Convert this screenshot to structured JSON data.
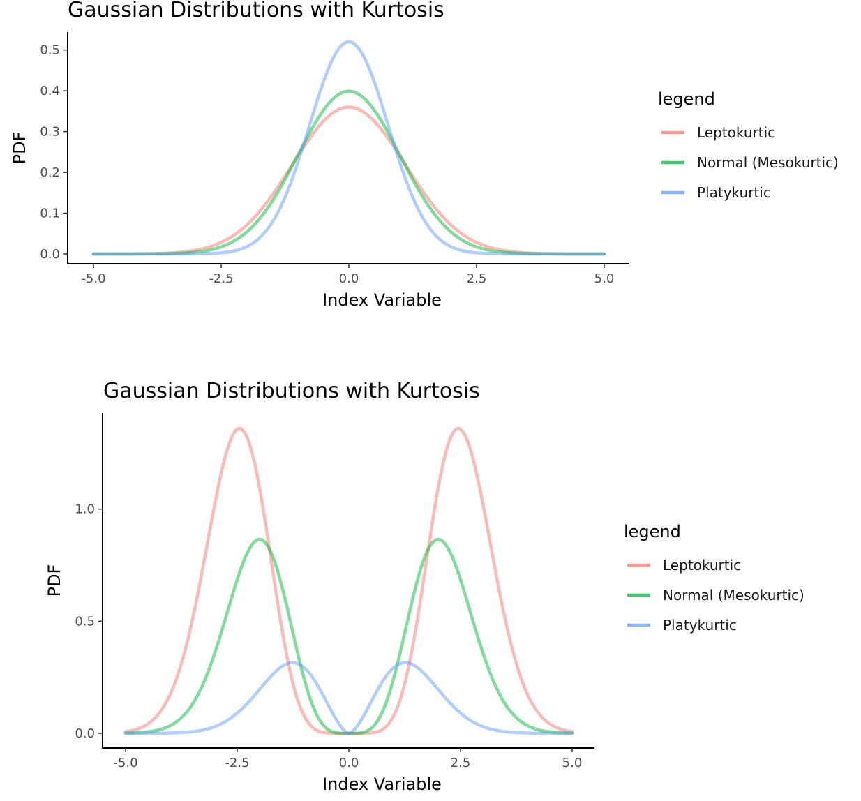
{
  "chart_data": [
    {
      "type": "line",
      "title": "Gaussian Distributions with Kurtosis",
      "xlabel": "Index Variable",
      "ylabel": "PDF",
      "xlim": [
        -5,
        5
      ],
      "ylim": [
        0,
        0.52
      ],
      "x_ticks": [
        "-5.0",
        "-2.5",
        "0.0",
        "2.5",
        "5.0"
      ],
      "y_ticks": [
        "0.0",
        "0.1",
        "0.2",
        "0.3",
        "0.4",
        "0.5"
      ],
      "legend_title": "legend",
      "legend_position": "right",
      "grid": false,
      "series": [
        {
          "name": "Leptokurtic",
          "color": "#F8766D",
          "shape": "gaussian",
          "mu": 0,
          "sigma": 1.11,
          "peak": 0.36
        },
        {
          "name": "Normal (Mesokurtic)",
          "color": "#00BA38",
          "shape": "gaussian",
          "mu": 0,
          "sigma": 1.0,
          "peak": 0.399
        },
        {
          "name": "Platykurtic",
          "color": "#619CFF",
          "shape": "gaussian",
          "mu": 0,
          "sigma": 0.77,
          "peak": 0.52
        }
      ]
    },
    {
      "type": "line",
      "title": "Gaussian Distributions with Kurtosis",
      "xlabel": "Index Variable",
      "ylabel": "PDF",
      "xlim": [
        -5,
        5
      ],
      "ylim": [
        0,
        1.36
      ],
      "x_ticks": [
        "-5.0",
        "-2.5",
        "0.0",
        "2.5",
        "5.0"
      ],
      "y_ticks": [
        "0.0",
        "0.5",
        "1.0"
      ],
      "legend_title": "legend",
      "legend_position": "right",
      "grid": false,
      "series": [
        {
          "name": "Leptokurtic",
          "color": "#F8766D",
          "shape": "bimodal",
          "peak_x": 2.45,
          "peak": 1.36,
          "power": 3
        },
        {
          "name": "Normal (Mesokurtic)",
          "color": "#00BA38",
          "shape": "bimodal",
          "peak_x": 2.0,
          "peak": 0.865,
          "power": 2
        },
        {
          "name": "Platykurtic",
          "color": "#619CFF",
          "shape": "bimodal",
          "peak_x": 1.26,
          "peak": 0.315,
          "power": 0.8
        }
      ]
    }
  ]
}
